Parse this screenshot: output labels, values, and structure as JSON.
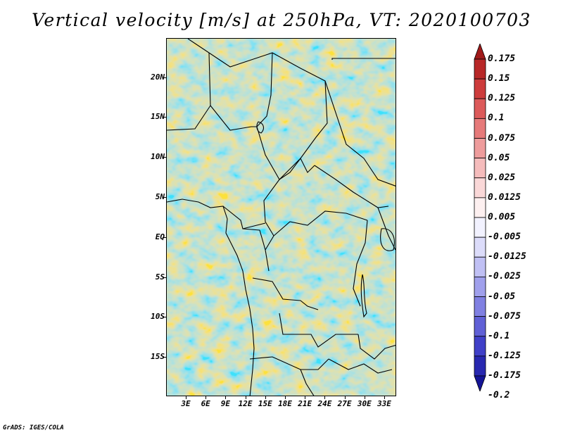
{
  "title": "Vertical velocity [m/s] at 250hPa, VT: 2020100703",
  "credit": "GrADS: IGES/COLA",
  "map": {
    "lon_range": [
      0,
      35
    ],
    "lat_range": [
      -19,
      25
    ],
    "y_ticks": [
      "20N",
      "15N",
      "10N",
      "5N",
      "EQ",
      "5S",
      "10S",
      "15S"
    ],
    "x_ticks": [
      "3E",
      "6E",
      "9E",
      "12E",
      "15E",
      "18E",
      "21E",
      "24E",
      "27E",
      "30E",
      "33E"
    ],
    "field": "vertical-velocity-250hPa"
  },
  "colorbar": {
    "labels": [
      "0.175",
      "0.15",
      "0.125",
      "0.1",
      "0.075",
      "0.05",
      "0.025",
      "0.0125",
      "0.005",
      "-0.005",
      "-0.0125",
      "-0.025",
      "-0.05",
      "-0.075",
      "-0.1",
      "-0.125",
      "-0.175",
      "-0.2"
    ],
    "colors": [
      "#a01a1a",
      "#b82828",
      "#cd3c3c",
      "#dc5a5a",
      "#e67a7a",
      "#ee9c9c",
      "#f5bcbc",
      "#fad8d8",
      "#fdf0f0",
      "#f2f2ff",
      "#dcdcfa",
      "#c0c0f4",
      "#a0a0ec",
      "#8080e2",
      "#6060d6",
      "#4040c8",
      "#2828b0",
      "#141496"
    ]
  }
}
